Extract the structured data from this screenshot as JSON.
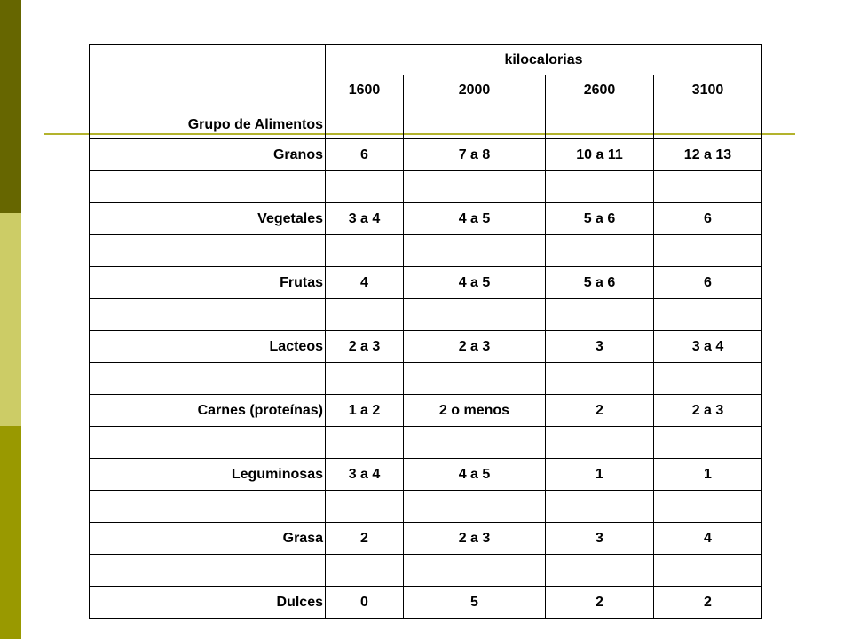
{
  "table": {
    "group_header": "kilocalorias",
    "row_header": "Grupo de Alimentos",
    "columns": [
      "1600",
      "2000",
      "2600",
      "3100"
    ],
    "rows": [
      {
        "name": "Granos",
        "values": [
          "6",
          "7 a 8",
          "10 a 11",
          "12 a 13"
        ]
      },
      {
        "name": "Vegetales",
        "values": [
          "3 a 4",
          "4 a 5",
          "5 a 6",
          "6"
        ]
      },
      {
        "name": "Frutas",
        "values": [
          "4",
          "4 a 5",
          "5 a 6",
          "6"
        ]
      },
      {
        "name": "Lacteos",
        "values": [
          "2 a 3",
          "2 a 3",
          "3",
          "3 a 4"
        ]
      },
      {
        "name": "Carnes (proteínas)",
        "values": [
          "1 a 2",
          "2 o menos",
          "2",
          "2 a 3"
        ]
      },
      {
        "name": "Leguminosas",
        "values": [
          "3 a 4",
          "4 a 5",
          "1",
          "1"
        ]
      },
      {
        "name": "Grasa",
        "values": [
          "2",
          "2 a 3",
          "3",
          "4"
        ]
      },
      {
        "name": "Dulces",
        "values": [
          "0",
          "5",
          "2",
          "2"
        ]
      }
    ]
  },
  "theme": {
    "bar_dark": "#666600",
    "bar_light": "#cccc66",
    "bar_mid": "#999900",
    "rule": "#b3b32d"
  }
}
